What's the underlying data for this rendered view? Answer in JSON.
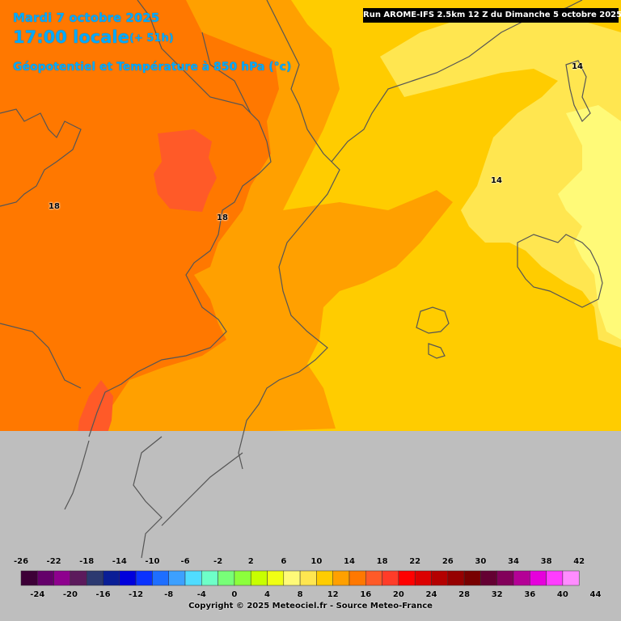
{
  "header": {
    "date": "Mardi 7 octobre 2025",
    "time": "17:00 locale",
    "lead": "(+ 51h)",
    "parameter": "Géopotentiel et Température à 850 hPa (°c)"
  },
  "run_info": "Run AROME-IFS 2.5km 12 Z du Dimanche 5 octobre 2025",
  "isolines": {
    "west_a": "18",
    "west_b": "18",
    "northeast": "14",
    "east": "14"
  },
  "legend": {
    "upper_labels": [
      "-26",
      "-22",
      "-18",
      "-14",
      "-10",
      "-6",
      "-2",
      "2",
      "6",
      "10",
      "14",
      "18",
      "22",
      "26",
      "30",
      "34",
      "38",
      "42"
    ],
    "lower_labels": [
      "-24",
      "-20",
      "-16",
      "-12",
      "-8",
      "-4",
      "0",
      "4",
      "8",
      "12",
      "16",
      "20",
      "24",
      "28",
      "32",
      "36",
      "40",
      "44"
    ],
    "colors": [
      "#3d0037",
      "#64006a",
      "#8e008e",
      "#5c1a5c",
      "#2c3970",
      "#0a1e96",
      "#0000dc",
      "#0a32ff",
      "#1e6eff",
      "#3ca0ff",
      "#50dcff",
      "#6effc8",
      "#78ff78",
      "#8cff3c",
      "#c8ff00",
      "#f0ff14",
      "#fffa78",
      "#ffe650",
      "#ffcc00",
      "#ffa000",
      "#ff7800",
      "#ff5a28",
      "#ff3c28",
      "#ff0000",
      "#dc0000",
      "#b40000",
      "#960000",
      "#780000",
      "#640032",
      "#82005a",
      "#b40096",
      "#e600dc",
      "#ff3cff",
      "#ff8cff"
    ]
  },
  "map_colors": {
    "t16": "#ffcc00",
    "t17": "#ffa000",
    "t18": "#ff7800",
    "t19": "#ff5a28",
    "t14": "#ffe650",
    "t13": "#fffa78",
    "nodata": "#bebebe"
  },
  "copyright": "Copyright © 2025 Meteociel.fr - Source Meteo-France"
}
